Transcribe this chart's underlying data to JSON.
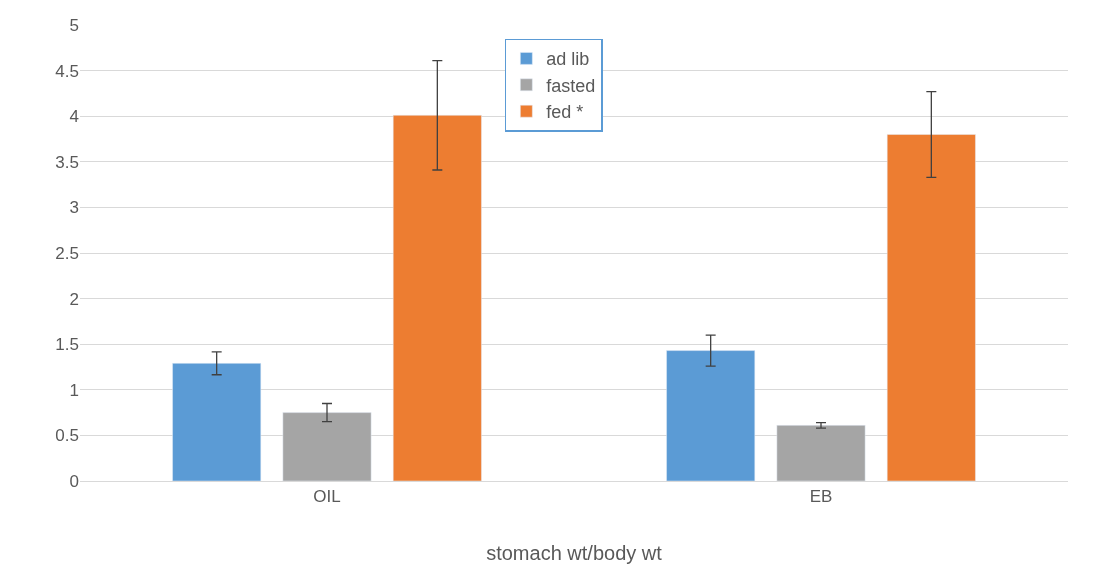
{
  "chart_data": {
    "type": "bar",
    "xlabel": "stomach wt/body wt",
    "categories": [
      "OIL",
      "EB"
    ],
    "series": [
      {
        "name": "ad lib",
        "color": "#5b9bd5",
        "values": [
          1.29,
          1.43
        ],
        "errors": [
          0.125,
          0.17
        ]
      },
      {
        "name": "fasted",
        "color": "#a5a5a5",
        "values": [
          0.75,
          0.61
        ],
        "errors": [
          0.1,
          0.03
        ]
      },
      {
        "name": "fed *",
        "color": "#ed7d31",
        "values": [
          4.01,
          3.8
        ],
        "errors": [
          0.6,
          0.47
        ]
      }
    ],
    "ylim": [
      0,
      5
    ],
    "yticks": [
      0,
      0.5,
      1,
      1.5,
      2,
      2.5,
      3,
      3.5,
      4,
      4.5,
      5
    ],
    "grid": "y",
    "legend": "top"
  }
}
